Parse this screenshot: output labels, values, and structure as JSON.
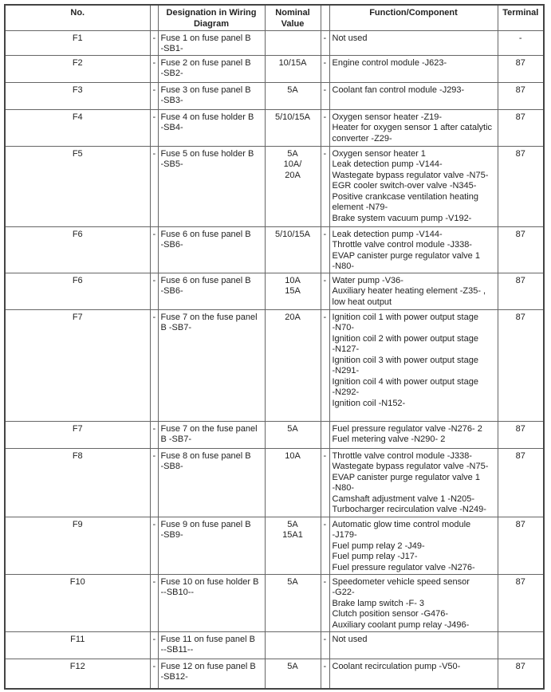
{
  "headers": {
    "no": "No.",
    "designation": "Designation in Wiring\nDiagram",
    "nominal": "Nominal\nValue",
    "function": "Function/Component",
    "terminal": "Terminal"
  },
  "rows": [
    {
      "no": "F1",
      "dash1": "-",
      "designation": "Fuse 1 on fuse panel B\n-SB1-",
      "value": "",
      "dash2": "-",
      "function": "Not used",
      "terminal": "-"
    },
    {
      "no": "F2",
      "dash1": "-",
      "designation": "Fuse 2 on fuse panel B\n-SB2-",
      "value": "10/15A",
      "dash2": "-",
      "function": "Engine control module -J623-",
      "terminal": "87"
    },
    {
      "no": "F3",
      "dash1": "-",
      "designation": "Fuse 3 on fuse panel B\n-SB3-",
      "value": "5A",
      "dash2": "-",
      "function": "Coolant fan control module -J293-",
      "terminal": "87"
    },
    {
      "no": "F4",
      "dash1": "-",
      "designation": "Fuse 4 on fuse holder B\n-SB4-",
      "value": "5/10/15A",
      "dash2": "-",
      "function": "Oxygen sensor heater -Z19-\nHeater for oxygen sensor 1 after catalytic\nconverter -Z29-",
      "terminal": "87"
    },
    {
      "no": "F5",
      "dash1": "-",
      "designation": "Fuse 5 on fuse holder B\n-SB5-",
      "value": "5A\n10A/\n20A",
      "dash2": "-",
      "function": "Oxygen sensor heater 1\nLeak detection pump -V144-\nWastegate bypass regulator valve -N75-\nEGR cooler switch-over valve -N345-\nPositive crankcase ventilation heating\nelement -N79-\nBrake system vacuum pump -V192-",
      "terminal": "87"
    },
    {
      "no": "F6",
      "dash1": "-",
      "designation": "Fuse 6 on fuse panel B\n-SB6-",
      "value": "5/10/15A",
      "dash2": "-",
      "function": "Leak detection pump -V144-\nThrottle valve control module -J338-\nEVAP canister purge regulator valve 1\n-N80-",
      "terminal": "87"
    },
    {
      "no": "F6",
      "dash1": "-",
      "designation": "Fuse 6 on fuse panel B\n-SB6-",
      "value": "10A\n15A",
      "dash2": "-",
      "function": "Water pump -V36-\nAuxiliary heater heating element -Z35- ,\nlow heat output",
      "terminal": "87"
    },
    {
      "no": "F7",
      "dash1": "-",
      "designation": "Fuse 7 on the fuse panel\nB -SB7-",
      "value": "20A",
      "dash2": "-",
      "function": "Ignition coil 1 with power output stage\n-N70-\nIgnition coil 2 with power output stage\n-N127-\nIgnition coil 3 with power output stage\n-N291-\nIgnition coil 4 with power output stage\n-N292-\nIgnition coil -N152-",
      "terminal": "87"
    },
    {
      "no": "F7",
      "dash1": "-",
      "designation": "Fuse 7 on the fuse panel\nB -SB7-",
      "value": "5A",
      "dash2": "",
      "function": "Fuel pressure regulator valve -N276- 2\nFuel metering valve -N290- 2",
      "terminal": "87"
    },
    {
      "no": "F8",
      "dash1": "-",
      "designation": "Fuse 8 on fuse panel B\n-SB8-",
      "value": "10A",
      "dash2": "-",
      "function": "Throttle valve control module -J338-\nWastegate bypass regulator valve -N75-\nEVAP canister purge regulator valve 1\n-N80-\nCamshaft adjustment valve 1 -N205-\nTurbocharger recirculation valve -N249-",
      "terminal": "87"
    },
    {
      "no": "F9",
      "dash1": "-",
      "designation": "Fuse 9 on fuse panel B\n-SB9-",
      "value": "5A\n15A1",
      "dash2": "-",
      "function": "Automatic glow time control module\n-J179-\nFuel pump relay 2 -J49-\nFuel pump relay -J17-\nFuel pressure regulator valve -N276-",
      "terminal": "87"
    },
    {
      "no": "F10",
      "dash1": "-",
      "designation": "Fuse 10 on fuse holder B\n--SB10--",
      "value": "5A",
      "dash2": "-",
      "function": "Speedometer vehicle speed sensor\n-G22-\nBrake lamp switch -F- 3\nClutch position sensor -G476-\nAuxiliary coolant pump relay -J496-",
      "terminal": "87"
    },
    {
      "no": "F11",
      "dash1": "-",
      "designation": "Fuse 11 on fuse panel B\n--SB11--",
      "value": "",
      "dash2": "-",
      "function": "Not used",
      "terminal": ""
    },
    {
      "no": "F12",
      "dash1": "-",
      "designation": "Fuse 12 on fuse panel B\n-SB12-",
      "value": "5A",
      "dash2": "-",
      "function": "Coolant recirculation pump -V50-",
      "terminal": "87"
    }
  ]
}
